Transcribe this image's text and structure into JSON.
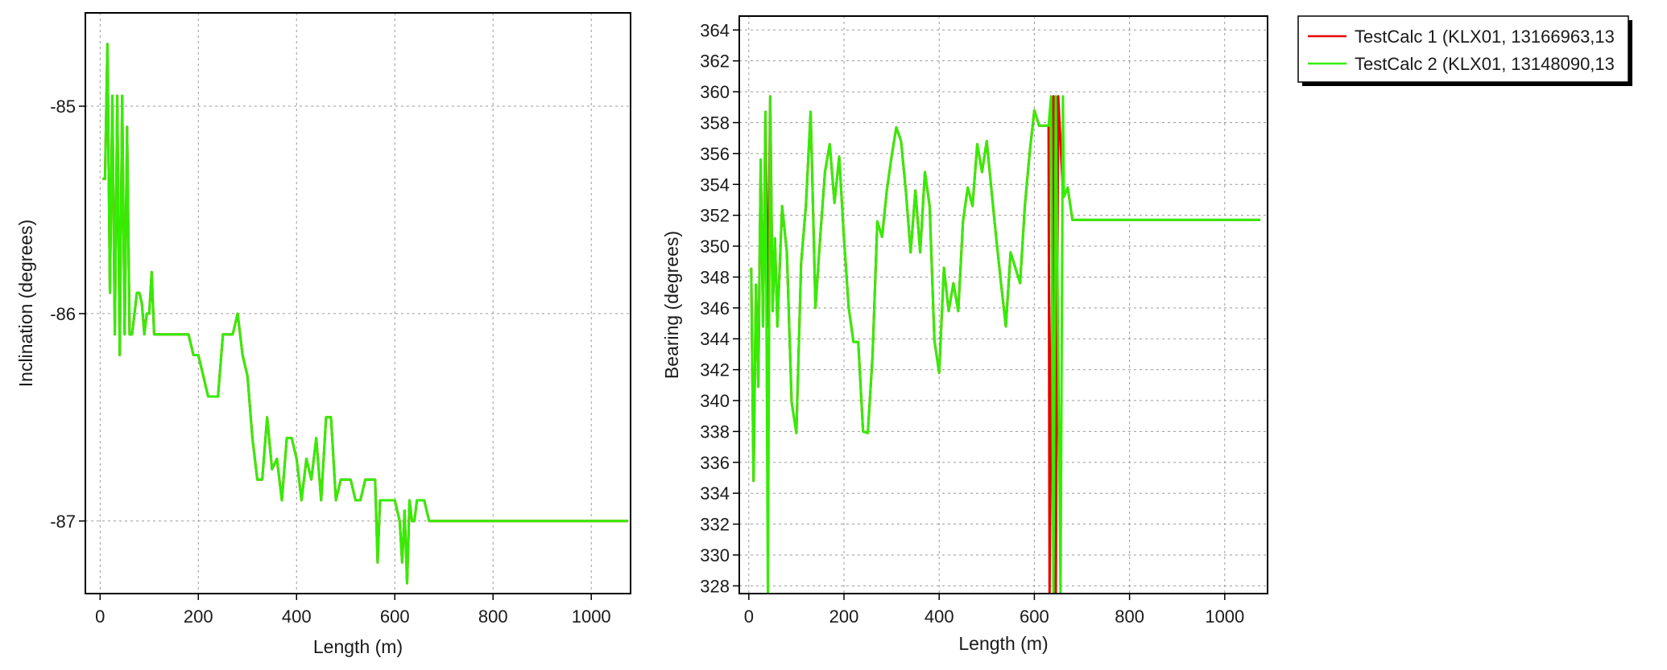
{
  "chart_data": [
    {
      "type": "line",
      "xlabel": "Length (m)",
      "ylabel": "Inclination (degrees)",
      "xlim": [
        -30,
        1080
      ],
      "ylim": [
        -87.35,
        -84.55
      ],
      "xticks": [
        0,
        200,
        400,
        600,
        800,
        1000
      ],
      "yticks": [
        -85,
        -86,
        -87
      ],
      "grid": true,
      "series": [
        {
          "color": "#e60000",
          "x": [
            5,
            10,
            15,
            20,
            25,
            30,
            35,
            40,
            45,
            50,
            55,
            60,
            65,
            70,
            75,
            80,
            85,
            90,
            95,
            100,
            105,
            110,
            120,
            130,
            140,
            150,
            160,
            170,
            180,
            190,
            200,
            210,
            220,
            230,
            240,
            250,
            260,
            270,
            280,
            290,
            300,
            310,
            320,
            330,
            340,
            350,
            360,
            370,
            380,
            390,
            400,
            410,
            420,
            430,
            440,
            450,
            460,
            470,
            480,
            490,
            500,
            510,
            520,
            530,
            540,
            550,
            560,
            565,
            570,
            580,
            590,
            600,
            610,
            615,
            620,
            625,
            630,
            635,
            640,
            645,
            650,
            660,
            670,
            680,
            700,
            800,
            900,
            1000,
            1075
          ],
          "y": [
            -85.35,
            -85.35,
            -84.7,
            -85.9,
            -84.95,
            -86.1,
            -84.95,
            -86.2,
            -84.95,
            -86.1,
            -85.1,
            -86.1,
            -86.1,
            -86.0,
            -85.9,
            -85.9,
            -85.95,
            -86.1,
            -86.0,
            -86.0,
            -85.8,
            -86.1,
            -86.1,
            -86.1,
            -86.1,
            -86.1,
            -86.1,
            -86.1,
            -86.1,
            -86.2,
            -86.2,
            -86.3,
            -86.4,
            -86.4,
            -86.4,
            -86.1,
            -86.1,
            -86.1,
            -86.0,
            -86.2,
            -86.3,
            -86.6,
            -86.8,
            -86.8,
            -86.5,
            -86.75,
            -86.7,
            -86.9,
            -86.6,
            -86.6,
            -86.7,
            -86.9,
            -86.7,
            -86.8,
            -86.6,
            -86.9,
            -86.5,
            -86.5,
            -86.9,
            -86.8,
            -86.8,
            -86.8,
            -86.9,
            -86.9,
            -86.8,
            -86.8,
            -86.8,
            -87.2,
            -86.9,
            -86.9,
            -86.9,
            -86.9,
            -87.0,
            -87.2,
            -86.95,
            -87.3,
            -86.9,
            -87.0,
            -87.0,
            -86.9,
            -86.9,
            -86.9,
            -87.0,
            -87.0,
            -87.0,
            -87.0,
            -87.0,
            -87.0,
            -87.0
          ]
        },
        {
          "color": "#33ee00",
          "x": [
            5,
            10,
            15,
            20,
            25,
            30,
            35,
            40,
            45,
            50,
            55,
            60,
            65,
            70,
            75,
            80,
            85,
            90,
            95,
            100,
            105,
            110,
            120,
            130,
            140,
            150,
            160,
            170,
            180,
            190,
            200,
            210,
            220,
            230,
            240,
            250,
            260,
            270,
            280,
            290,
            300,
            310,
            320,
            330,
            340,
            350,
            360,
            370,
            380,
            390,
            400,
            410,
            420,
            430,
            440,
            450,
            460,
            470,
            480,
            490,
            500,
            510,
            520,
            530,
            540,
            550,
            560,
            565,
            570,
            580,
            590,
            600,
            610,
            615,
            620,
            625,
            630,
            635,
            640,
            645,
            650,
            660,
            670,
            680,
            700,
            800,
            900,
            1000,
            1075
          ],
          "y": [
            -85.35,
            -85.35,
            -84.7,
            -85.9,
            -84.95,
            -86.1,
            -84.95,
            -86.2,
            -84.95,
            -86.1,
            -85.1,
            -86.1,
            -86.1,
            -86.0,
            -85.9,
            -85.9,
            -85.95,
            -86.1,
            -86.0,
            -86.0,
            -85.8,
            -86.1,
            -86.1,
            -86.1,
            -86.1,
            -86.1,
            -86.1,
            -86.1,
            -86.1,
            -86.2,
            -86.2,
            -86.3,
            -86.4,
            -86.4,
            -86.4,
            -86.1,
            -86.1,
            -86.1,
            -86.0,
            -86.2,
            -86.3,
            -86.6,
            -86.8,
            -86.8,
            -86.5,
            -86.75,
            -86.7,
            -86.9,
            -86.6,
            -86.6,
            -86.7,
            -86.9,
            -86.7,
            -86.8,
            -86.6,
            -86.9,
            -86.5,
            -86.5,
            -86.9,
            -86.8,
            -86.8,
            -86.8,
            -86.9,
            -86.9,
            -86.8,
            -86.8,
            -86.8,
            -87.2,
            -86.9,
            -86.9,
            -86.9,
            -86.9,
            -87.0,
            -87.2,
            -86.95,
            -87.3,
            -86.9,
            -87.0,
            -87.0,
            -86.9,
            -86.9,
            -86.9,
            -87.0,
            -87.0,
            -87.0,
            -87.0,
            -87.0,
            -87.0,
            -87.0
          ]
        }
      ]
    },
    {
      "type": "line",
      "xlabel": "Length (m)",
      "ylabel": "Bearing (degrees)",
      "xlim": [
        -20,
        1090
      ],
      "ylim": [
        327.5,
        364.9
      ],
      "xticks": [
        0,
        200,
        400,
        600,
        800,
        1000
      ],
      "yticks": [
        328,
        330,
        332,
        334,
        336,
        338,
        340,
        342,
        344,
        346,
        348,
        350,
        352,
        354,
        356,
        358,
        360,
        362,
        364
      ],
      "grid": true,
      "series": [
        {
          "name": "TestCalc 1 (KLX01, 13166963,13",
          "color": "#e60000",
          "x": [
            5,
            10,
            15,
            20,
            25,
            30,
            35,
            40,
            45,
            50,
            55,
            60,
            70,
            80,
            90,
            100,
            110,
            120,
            130,
            140,
            150,
            160,
            170,
            180,
            190,
            200,
            210,
            220,
            230,
            240,
            250,
            260,
            270,
            280,
            290,
            300,
            310,
            320,
            330,
            340,
            350,
            360,
            370,
            380,
            390,
            400,
            410,
            420,
            430,
            440,
            450,
            460,
            470,
            480,
            490,
            500,
            510,
            520,
            530,
            540,
            550,
            560,
            570,
            580,
            590,
            600,
            610,
            620,
            630,
            632,
            640,
            645,
            650,
            660,
            662,
            670,
            680,
            690,
            700,
            800,
            900,
            1000,
            1075
          ],
          "y": [
            348.6,
            334.8,
            347.5,
            340.9,
            355.6,
            344.8,
            358.7,
            344.8,
            359.7,
            345.8,
            350.5,
            344.8,
            352.6,
            349.6,
            339.9,
            337.9,
            348.9,
            352.6,
            358.7,
            346.0,
            350.6,
            354.8,
            356.6,
            352.8,
            355.8,
            350.5,
            346.0,
            343.8,
            343.8,
            338.0,
            337.9,
            342.9,
            351.6,
            350.6,
            353.6,
            355.8,
            357.7,
            356.8,
            353.6,
            349.6,
            353.6,
            349.6,
            354.8,
            352.6,
            343.9,
            341.8,
            348.6,
            345.8,
            347.6,
            345.8,
            351.6,
            353.8,
            352.6,
            356.6,
            354.8,
            356.8,
            353.6,
            350.5,
            347.6,
            344.8,
            349.6,
            348.6,
            347.6,
            352.6,
            356.0,
            358.8,
            357.8,
            357.8,
            357.8,
            327.5,
            359.7,
            327.5,
            359.7,
            353.6,
            353.2,
            353.8,
            351.7,
            351.7,
            351.7,
            351.7,
            351.7,
            351.7,
            351.7
          ]
        },
        {
          "name": "TestCalc 2 (KLX01, 13148090,13",
          "color": "#33ee00",
          "x": [
            5,
            10,
            15,
            20,
            25,
            30,
            35,
            40,
            45,
            50,
            55,
            60,
            70,
            80,
            90,
            100,
            110,
            120,
            130,
            140,
            150,
            160,
            170,
            180,
            190,
            200,
            210,
            220,
            230,
            240,
            250,
            260,
            270,
            280,
            290,
            300,
            310,
            320,
            330,
            340,
            350,
            360,
            370,
            380,
            390,
            400,
            410,
            420,
            430,
            440,
            450,
            460,
            470,
            480,
            490,
            500,
            510,
            520,
            530,
            540,
            550,
            560,
            570,
            580,
            590,
            600,
            610,
            620,
            630,
            635,
            640,
            645,
            655,
            660,
            662,
            670,
            680,
            690,
            700,
            800,
            900,
            1000,
            1075
          ],
          "y": [
            348.6,
            334.8,
            347.5,
            340.9,
            355.6,
            344.8,
            358.7,
            327.5,
            359.7,
            345.8,
            350.5,
            344.8,
            352.6,
            349.6,
            339.9,
            337.9,
            348.9,
            352.6,
            358.7,
            346.0,
            350.6,
            354.8,
            356.6,
            352.8,
            355.8,
            350.5,
            346.0,
            343.8,
            343.8,
            338.0,
            337.9,
            342.9,
            351.6,
            350.6,
            353.6,
            355.8,
            357.7,
            356.8,
            353.6,
            349.6,
            353.6,
            349.6,
            354.8,
            352.6,
            343.9,
            341.8,
            348.6,
            345.8,
            347.6,
            345.8,
            351.6,
            353.8,
            352.6,
            356.6,
            354.8,
            356.8,
            353.6,
            350.5,
            347.6,
            344.8,
            349.6,
            348.6,
            347.6,
            352.6,
            356.0,
            358.8,
            357.8,
            357.8,
            357.8,
            359.7,
            327.5,
            359.7,
            327.5,
            359.7,
            353.2,
            353.8,
            351.7,
            351.7,
            351.7,
            351.7,
            351.7,
            351.7,
            351.7
          ]
        }
      ]
    }
  ]
}
